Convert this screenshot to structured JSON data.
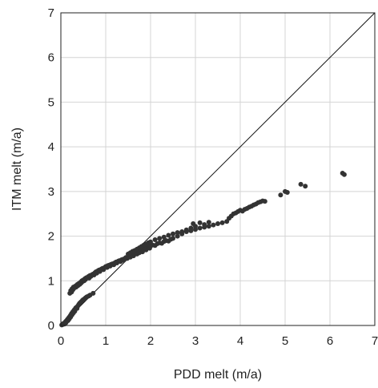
{
  "chart_data": {
    "type": "scatter",
    "xlabel": "PDD melt (m/a)",
    "ylabel": "ITM melt (m/a)",
    "xlim": [
      0,
      7
    ],
    "ylim": [
      0,
      7
    ],
    "xticks": [
      "0",
      "1",
      "2",
      "3",
      "4",
      "5",
      "6",
      "7"
    ],
    "yticks": [
      "0",
      "1",
      "2",
      "3",
      "4",
      "5",
      "6",
      "7"
    ],
    "grid": true,
    "reference_line": {
      "x": [
        0,
        7
      ],
      "y": [
        0,
        7
      ]
    },
    "series": [
      {
        "color": "#333333",
        "points": [
          [
            0.02,
            0.01
          ],
          [
            0.04,
            0.02
          ],
          [
            0.05,
            0.04
          ],
          [
            0.07,
            0.05
          ],
          [
            0.08,
            0.03
          ],
          [
            0.1,
            0.08
          ],
          [
            0.11,
            0.06
          ],
          [
            0.12,
            0.1
          ],
          [
            0.13,
            0.09
          ],
          [
            0.14,
            0.12
          ],
          [
            0.15,
            0.14
          ],
          [
            0.16,
            0.11
          ],
          [
            0.17,
            0.16
          ],
          [
            0.18,
            0.18
          ],
          [
            0.19,
            0.15
          ],
          [
            0.2,
            0.2
          ],
          [
            0.21,
            0.22
          ],
          [
            0.22,
            0.19
          ],
          [
            0.23,
            0.25
          ],
          [
            0.24,
            0.27
          ],
          [
            0.25,
            0.24
          ],
          [
            0.26,
            0.29
          ],
          [
            0.27,
            0.31
          ],
          [
            0.28,
            0.28
          ],
          [
            0.29,
            0.33
          ],
          [
            0.3,
            0.35
          ],
          [
            0.31,
            0.32
          ],
          [
            0.32,
            0.37
          ],
          [
            0.33,
            0.39
          ],
          [
            0.35,
            0.41
          ],
          [
            0.36,
            0.38
          ],
          [
            0.38,
            0.44
          ],
          [
            0.4,
            0.47
          ],
          [
            0.42,
            0.5
          ],
          [
            0.45,
            0.53
          ],
          [
            0.48,
            0.56
          ],
          [
            0.5,
            0.58
          ],
          [
            0.53,
            0.6
          ],
          [
            0.55,
            0.62
          ],
          [
            0.58,
            0.64
          ],
          [
            0.62,
            0.66
          ],
          [
            0.65,
            0.68
          ],
          [
            0.72,
            0.72
          ],
          [
            0.2,
            0.72
          ],
          [
            0.22,
            0.78
          ],
          [
            0.24,
            0.75
          ],
          [
            0.25,
            0.82
          ],
          [
            0.27,
            0.8
          ],
          [
            0.28,
            0.86
          ],
          [
            0.3,
            0.84
          ],
          [
            0.32,
            0.88
          ],
          [
            0.34,
            0.86
          ],
          [
            0.35,
            0.9
          ],
          [
            0.37,
            0.92
          ],
          [
            0.38,
            0.89
          ],
          [
            0.4,
            0.94
          ],
          [
            0.42,
            0.92
          ],
          [
            0.44,
            0.97
          ],
          [
            0.45,
            0.95
          ],
          [
            0.47,
            1.0
          ],
          [
            0.48,
            0.98
          ],
          [
            0.5,
            1.02
          ],
          [
            0.52,
            1.0
          ],
          [
            0.54,
            1.05
          ],
          [
            0.55,
            1.03
          ],
          [
            0.57,
            1.07
          ],
          [
            0.6,
            1.08
          ],
          [
            0.62,
            1.1
          ],
          [
            0.63,
            1.06
          ],
          [
            0.65,
            1.12
          ],
          [
            0.67,
            1.1
          ],
          [
            0.7,
            1.14
          ],
          [
            0.72,
            1.15
          ],
          [
            0.74,
            1.13
          ],
          [
            0.76,
            1.18
          ],
          [
            0.78,
            1.2
          ],
          [
            0.8,
            1.17
          ],
          [
            0.82,
            1.22
          ],
          [
            0.85,
            1.24
          ],
          [
            0.87,
            1.21
          ],
          [
            0.9,
            1.26
          ],
          [
            0.93,
            1.28
          ],
          [
            0.95,
            1.25
          ],
          [
            0.98,
            1.3
          ],
          [
            1.0,
            1.32
          ],
          [
            1.03,
            1.3
          ],
          [
            1.05,
            1.34
          ],
          [
            1.08,
            1.35
          ],
          [
            1.1,
            1.33
          ],
          [
            1.12,
            1.37
          ],
          [
            1.15,
            1.38
          ],
          [
            1.18,
            1.36
          ],
          [
            1.2,
            1.4
          ],
          [
            1.23,
            1.42
          ],
          [
            1.25,
            1.4
          ],
          [
            1.28,
            1.44
          ],
          [
            1.3,
            1.45
          ],
          [
            1.33,
            1.43
          ],
          [
            1.35,
            1.47
          ],
          [
            1.38,
            1.48
          ],
          [
            1.4,
            1.46
          ],
          [
            1.43,
            1.5
          ],
          [
            1.45,
            1.52
          ],
          [
            1.48,
            1.5
          ],
          [
            1.5,
            1.54
          ],
          [
            1.53,
            1.55
          ],
          [
            1.55,
            1.53
          ],
          [
            1.58,
            1.57
          ],
          [
            1.6,
            1.58
          ],
          [
            1.62,
            1.56
          ],
          [
            1.65,
            1.6
          ],
          [
            1.68,
            1.62
          ],
          [
            1.7,
            1.6
          ],
          [
            1.72,
            1.64
          ],
          [
            1.75,
            1.63
          ],
          [
            1.78,
            1.66
          ],
          [
            1.8,
            1.68
          ],
          [
            1.82,
            1.65
          ],
          [
            1.85,
            1.7
          ],
          [
            1.88,
            1.72
          ],
          [
            1.9,
            1.69
          ],
          [
            1.92,
            1.74
          ],
          [
            1.95,
            1.75
          ],
          [
            1.98,
            1.73
          ],
          [
            2.0,
            1.78
          ],
          [
            2.05,
            1.8
          ],
          [
            2.1,
            1.79
          ],
          [
            2.15,
            1.83
          ],
          [
            2.2,
            1.85
          ],
          [
            2.25,
            1.84
          ],
          [
            2.3,
            1.88
          ],
          [
            2.35,
            1.9
          ],
          [
            2.4,
            1.89
          ],
          [
            2.45,
            1.93
          ],
          [
            2.5,
            1.95
          ],
          [
            1.5,
            1.6
          ],
          [
            1.55,
            1.63
          ],
          [
            1.6,
            1.66
          ],
          [
            1.65,
            1.68
          ],
          [
            1.7,
            1.71
          ],
          [
            1.75,
            1.74
          ],
          [
            1.8,
            1.77
          ],
          [
            1.85,
            1.8
          ],
          [
            1.9,
            1.82
          ],
          [
            1.95,
            1.85
          ],
          [
            2.0,
            1.87
          ],
          [
            2.1,
            1.92
          ],
          [
            2.2,
            1.95
          ],
          [
            2.3,
            1.98
          ],
          [
            2.4,
            2.02
          ],
          [
            2.5,
            2.05
          ],
          [
            2.6,
            2.08
          ],
          [
            2.7,
            2.1
          ],
          [
            2.8,
            2.14
          ],
          [
            2.9,
            2.18
          ],
          [
            3.0,
            2.22
          ],
          [
            2.95,
            2.28
          ],
          [
            3.1,
            2.3
          ],
          [
            3.2,
            2.26
          ],
          [
            3.3,
            2.31
          ],
          [
            2.6,
            2.0
          ],
          [
            2.7,
            2.05
          ],
          [
            2.8,
            2.1
          ],
          [
            2.9,
            2.12
          ],
          [
            3.0,
            2.15
          ],
          [
            3.1,
            2.18
          ],
          [
            3.2,
            2.2
          ],
          [
            3.3,
            2.22
          ],
          [
            3.4,
            2.25
          ],
          [
            3.5,
            2.28
          ],
          [
            3.6,
            2.3
          ],
          [
            3.7,
            2.33
          ],
          [
            3.75,
            2.4
          ],
          [
            3.8,
            2.45
          ],
          [
            3.85,
            2.5
          ],
          [
            3.9,
            2.52
          ],
          [
            3.95,
            2.55
          ],
          [
            4.0,
            2.58
          ],
          [
            4.05,
            2.56
          ],
          [
            4.1,
            2.6
          ],
          [
            4.15,
            2.62
          ],
          [
            4.2,
            2.65
          ],
          [
            4.25,
            2.67
          ],
          [
            4.3,
            2.7
          ],
          [
            4.35,
            2.72
          ],
          [
            4.4,
            2.75
          ],
          [
            4.45,
            2.77
          ],
          [
            4.5,
            2.79
          ],
          [
            4.55,
            2.78
          ],
          [
            4.9,
            2.92
          ],
          [
            5.0,
            3.0
          ],
          [
            5.05,
            2.98
          ],
          [
            5.35,
            3.16
          ],
          [
            5.45,
            3.12
          ],
          [
            6.28,
            3.41
          ],
          [
            6.32,
            3.38
          ]
        ]
      }
    ]
  }
}
